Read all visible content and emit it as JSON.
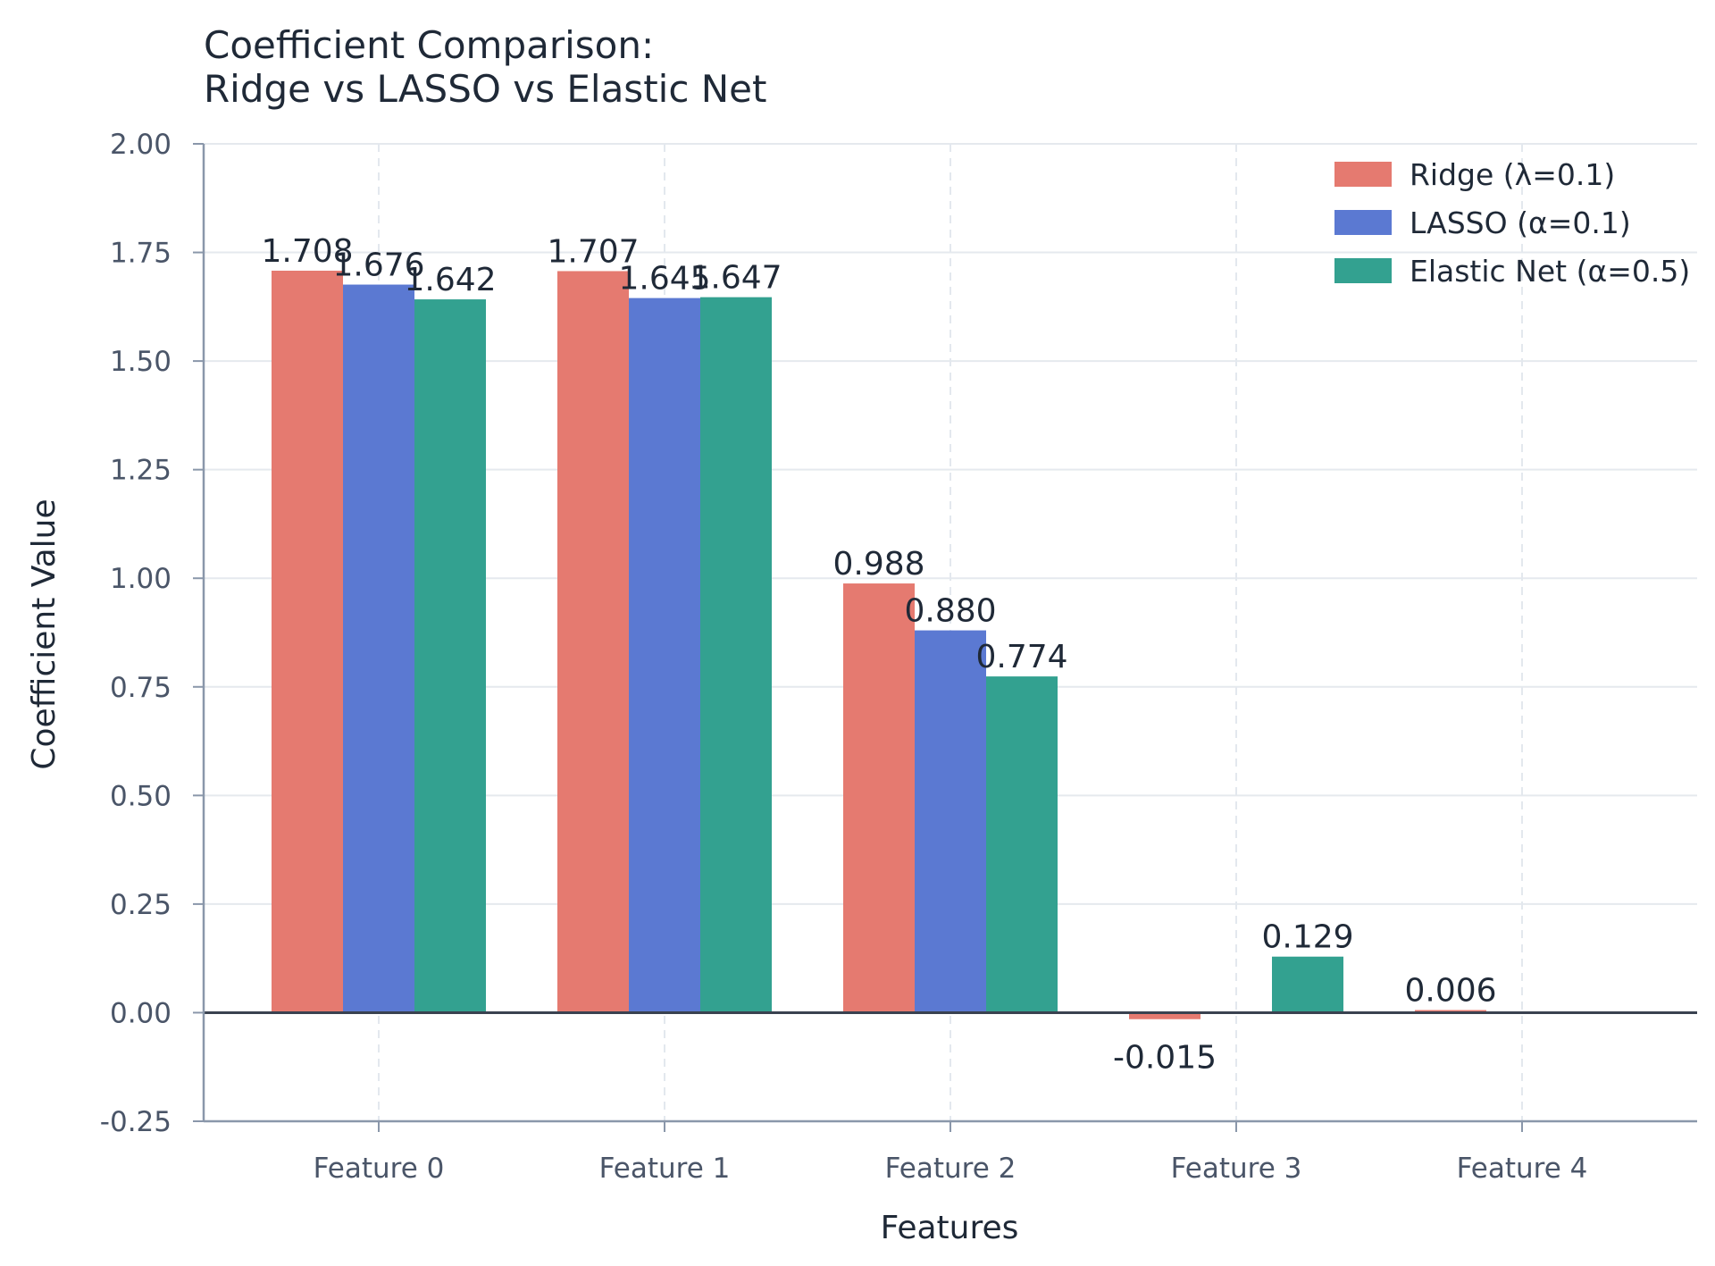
{
  "chart_data": {
    "type": "bar",
    "title_lines": [
      "Coefficient Comparison:",
      "Ridge vs LASSO vs Elastic Net"
    ],
    "xlabel": "Features",
    "ylabel": "Coefficient Value",
    "categories": [
      "Feature 0",
      "Feature 1",
      "Feature 2",
      "Feature 3",
      "Feature 4"
    ],
    "series": [
      {
        "name": "Ridge (λ=0.1)",
        "color": "#e57a70",
        "values": [
          1.708,
          1.707,
          0.988,
          -0.015,
          0.006
        ],
        "labels": [
          "1.708",
          "1.707",
          "0.988",
          "-0.015",
          "0.006"
        ]
      },
      {
        "name": "LASSO (α=0.1)",
        "color": "#5b79d2",
        "values": [
          1.676,
          1.645,
          0.88,
          0.0,
          0.0
        ],
        "labels": [
          "1.676",
          "1.645",
          "0.880",
          "",
          ""
        ]
      },
      {
        "name": "Elastic Net (α=0.5)",
        "color": "#33a190",
        "values": [
          1.642,
          1.647,
          0.774,
          0.129,
          0.0
        ],
        "labels": [
          "1.642",
          "1.647",
          "0.774",
          "0.129",
          ""
        ]
      }
    ],
    "ylim": [
      -0.25,
      2.0
    ],
    "yticks": [
      "-0.25",
      "0.00",
      "0.25",
      "0.50",
      "0.75",
      "1.00",
      "1.25",
      "1.50",
      "1.75",
      "2.00"
    ],
    "grid": true,
    "legend_position": "top-right"
  }
}
